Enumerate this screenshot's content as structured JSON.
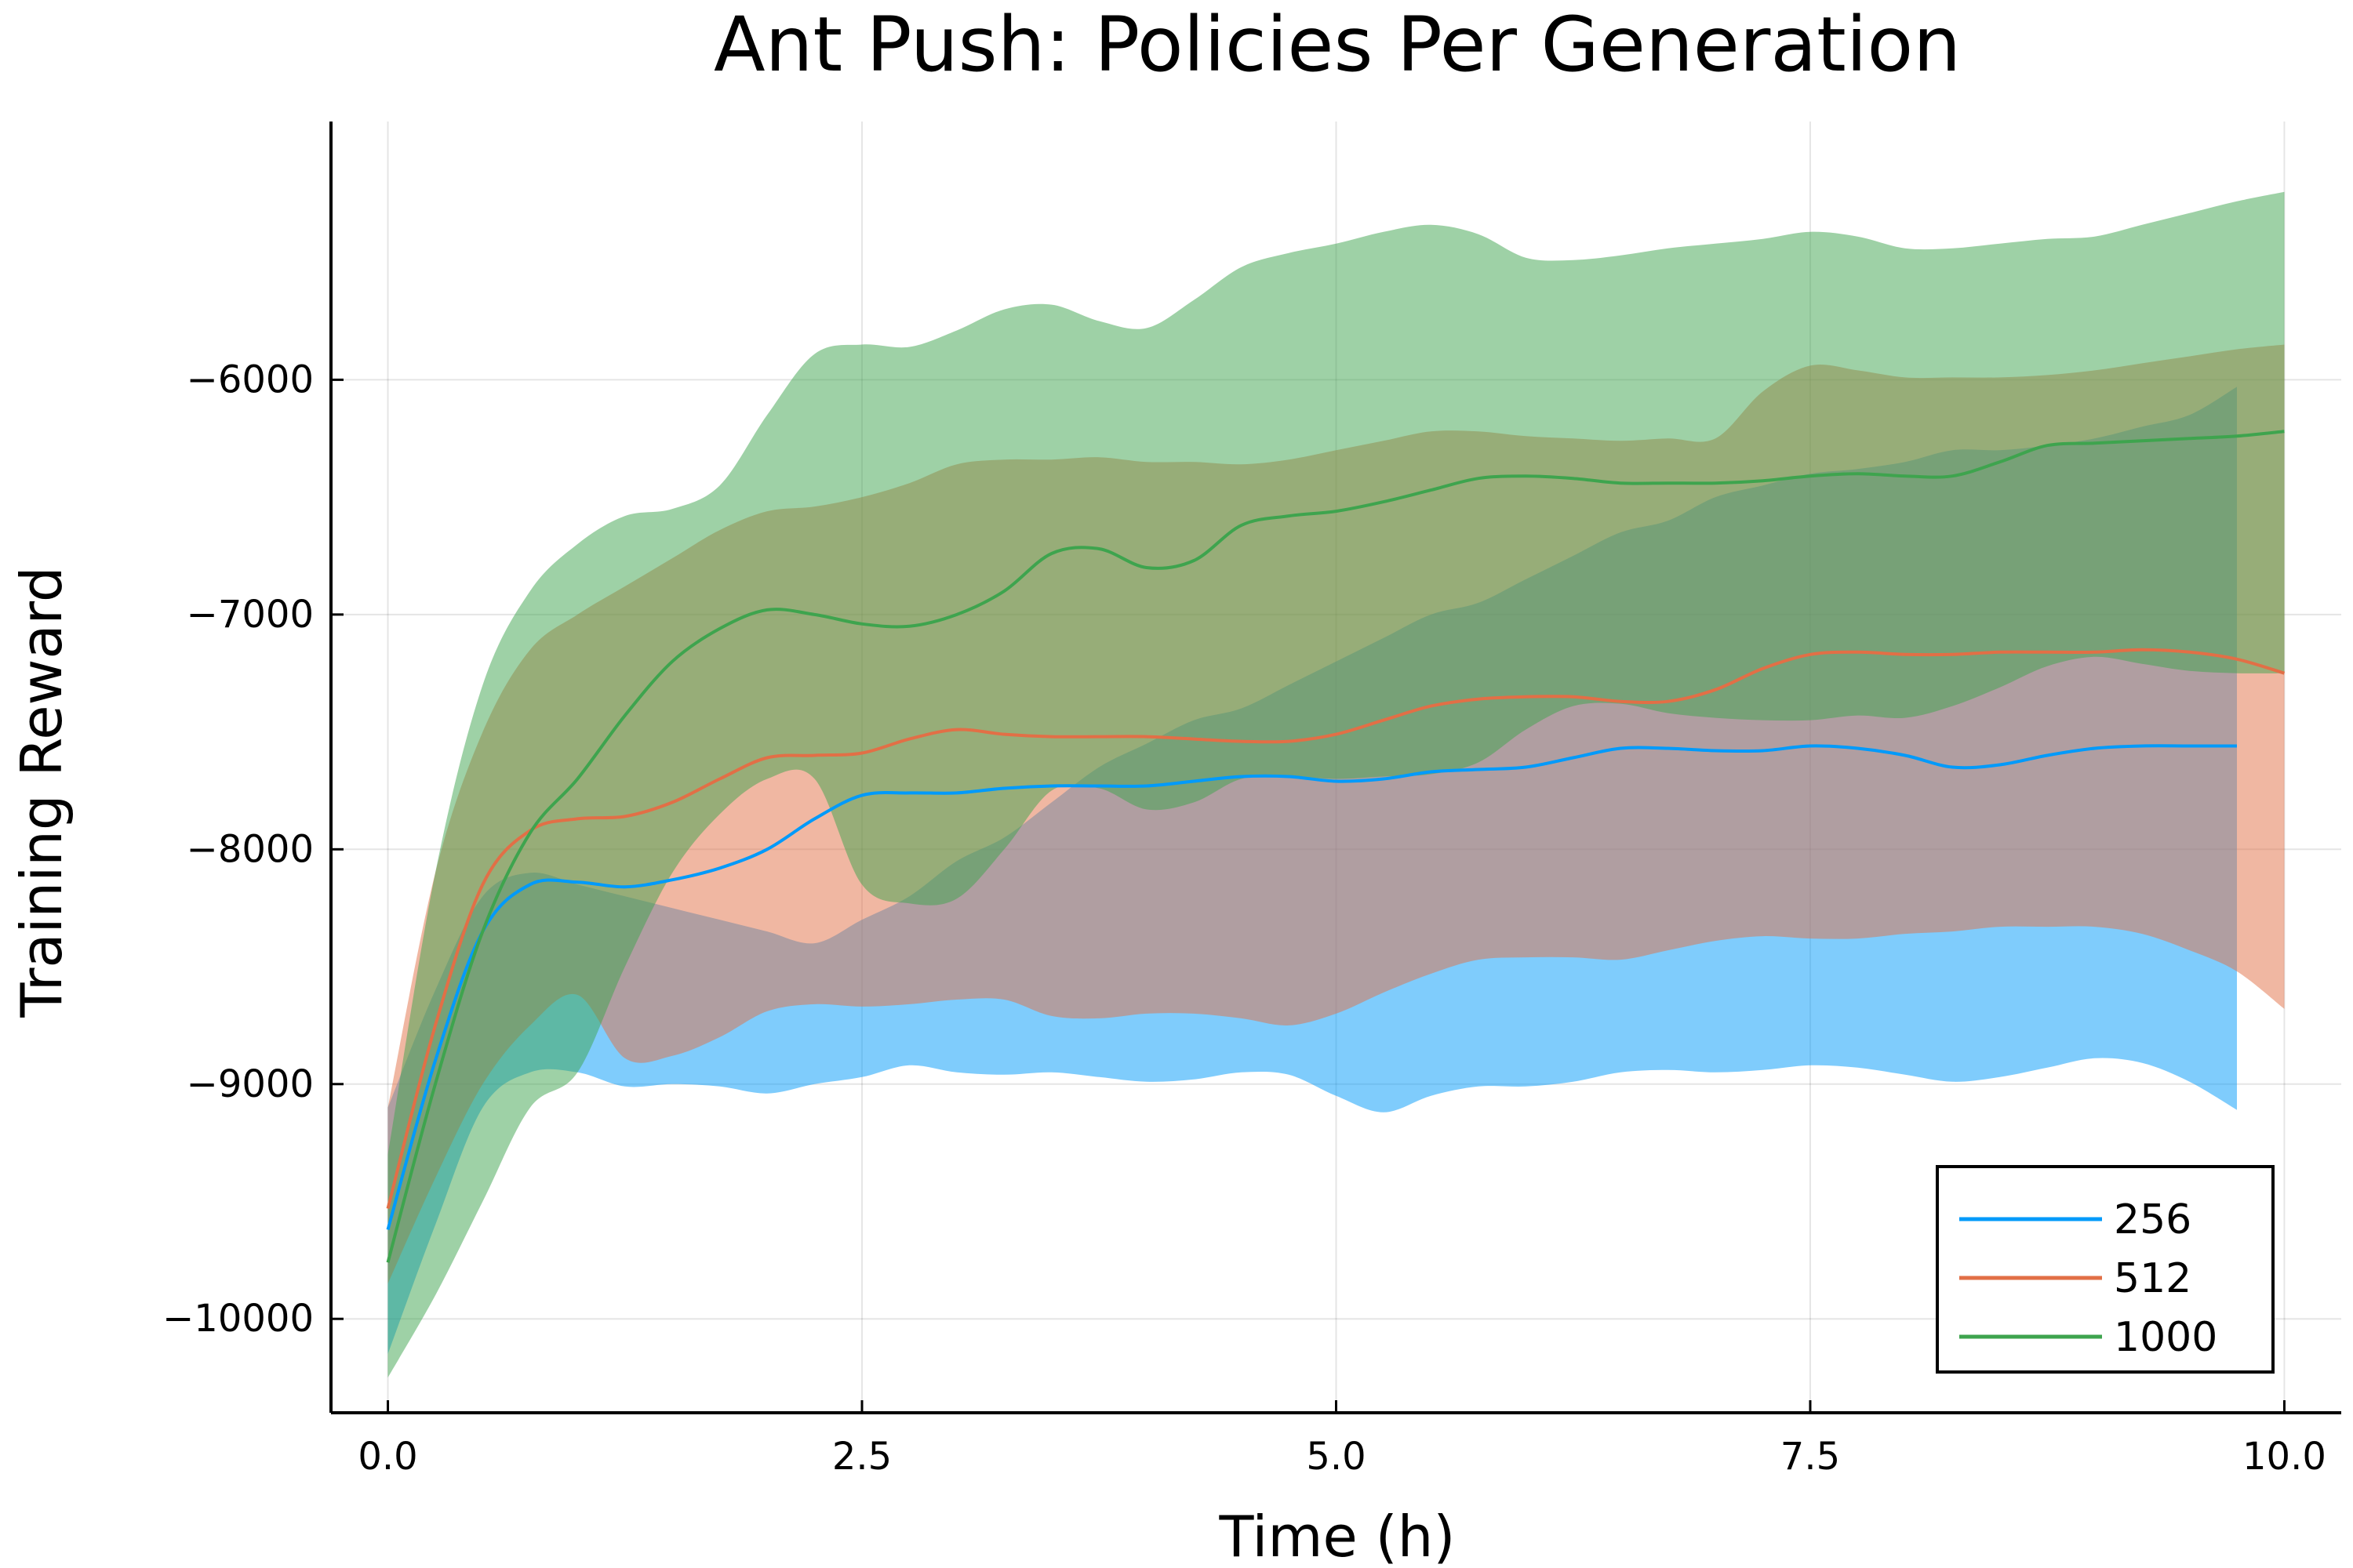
{
  "chart_data": {
    "type": "line",
    "title": "Ant Push: Policies Per Generation",
    "xlabel": "Time (h)",
    "ylabel": "Training Reward",
    "xlim": [
      -0.3,
      10.3
    ],
    "ylim": [
      -10400,
      -4900
    ],
    "xticks": [
      0,
      2.5,
      5,
      7.5,
      10
    ],
    "xtick_labels": [
      "0.0",
      "2.5",
      "5.0",
      "7.5",
      "10.0"
    ],
    "yticks": [
      -10000,
      -9000,
      -8000,
      -7000,
      -6000
    ],
    "ytick_labels": [
      "−10000",
      "−9000",
      "−8000",
      "−7000",
      "−6000"
    ],
    "grid": true,
    "legend_position": "bottom-right",
    "series": [
      {
        "name": "256",
        "color": "#009AFA",
        "x": [
          0,
          0.25,
          0.5,
          0.75,
          1,
          1.25,
          1.5,
          1.75,
          2,
          2.25,
          2.5,
          2.75,
          3,
          3.25,
          3.5,
          3.75,
          4,
          4.25,
          4.5,
          4.75,
          5,
          5.25,
          5.5,
          5.75,
          6,
          6.25,
          6.5,
          6.75,
          7,
          7.25,
          7.5,
          7.75,
          8,
          8.25,
          8.5,
          8.75,
          9,
          9.25,
          9.5,
          9.75
        ],
        "mean": [
          -9620,
          -8900,
          -8350,
          -8150,
          -8140,
          -8160,
          -8130,
          -8080,
          -8000,
          -7870,
          -7770,
          -7760,
          -7760,
          -7740,
          -7730,
          -7730,
          -7730,
          -7710,
          -7690,
          -7690,
          -7710,
          -7700,
          -7670,
          -7660,
          -7650,
          -7610,
          -7570,
          -7570,
          -7580,
          -7580,
          -7560,
          -7570,
          -7600,
          -7650,
          -7640,
          -7600,
          -7570,
          -7560,
          -7560,
          -7560
        ],
        "upper": [
          -9100,
          -8600,
          -8200,
          -8100,
          -8150,
          -8200,
          -8250,
          -8300,
          -8350,
          -8400,
          -8300,
          -8200,
          -8050,
          -7950,
          -7800,
          -7650,
          -7550,
          -7450,
          -7400,
          -7300,
          -7200,
          -7100,
          -7000,
          -6950,
          -6850,
          -6750,
          -6650,
          -6600,
          -6500,
          -6450,
          -6400,
          -6380,
          -6350,
          -6300,
          -6300,
          -6280,
          -6250,
          -6200,
          -6150,
          -6030
        ],
        "lower": [
          -10150,
          -9600,
          -9100,
          -8950,
          -8950,
          -9010,
          -9000,
          -9010,
          -9040,
          -9000,
          -8970,
          -8920,
          -8950,
          -8960,
          -8950,
          -8970,
          -8990,
          -8980,
          -8950,
          -8960,
          -9050,
          -9120,
          -9050,
          -9010,
          -9010,
          -8990,
          -8950,
          -8940,
          -8950,
          -8940,
          -8920,
          -8930,
          -8960,
          -8990,
          -8970,
          -8930,
          -8890,
          -8910,
          -8990,
          -9110
        ]
      },
      {
        "name": "512",
        "color": "#E26F46",
        "x": [
          0,
          0.25,
          0.5,
          0.75,
          1,
          1.25,
          1.5,
          1.75,
          2,
          2.25,
          2.5,
          2.75,
          3,
          3.25,
          3.5,
          3.75,
          4,
          4.25,
          4.5,
          4.75,
          5,
          5.25,
          5.5,
          5.75,
          6,
          6.25,
          6.5,
          6.75,
          7,
          7.25,
          7.5,
          7.75,
          8,
          8.25,
          8.5,
          8.75,
          9,
          9.25,
          9.5,
          9.75,
          10
        ],
        "mean": [
          -9530,
          -8750,
          -8150,
          -7920,
          -7870,
          -7860,
          -7800,
          -7700,
          -7610,
          -7600,
          -7590,
          -7530,
          -7490,
          -7510,
          -7520,
          -7520,
          -7520,
          -7530,
          -7540,
          -7540,
          -7510,
          -7450,
          -7390,
          -7360,
          -7350,
          -7350,
          -7370,
          -7370,
          -7320,
          -7230,
          -7170,
          -7160,
          -7170,
          -7170,
          -7160,
          -7160,
          -7160,
          -7150,
          -7160,
          -7190,
          -7250
        ],
        "upper": [
          -9100,
          -8100,
          -7500,
          -7150,
          -7000,
          -6880,
          -6760,
          -6640,
          -6560,
          -6540,
          -6500,
          -6440,
          -6360,
          -6340,
          -6340,
          -6330,
          -6350,
          -6350,
          -6360,
          -6340,
          -6300,
          -6260,
          -6220,
          -6220,
          -6240,
          -6250,
          -6260,
          -6250,
          -6250,
          -6050,
          -5940,
          -5960,
          -5990,
          -5990,
          -5990,
          -5980,
          -5960,
          -5930,
          -5900,
          -5870,
          -5850
        ],
        "lower": [
          -9850,
          -9400,
          -9000,
          -8750,
          -8620,
          -8890,
          -8880,
          -8800,
          -8690,
          -8660,
          -8670,
          -8660,
          -8640,
          -8640,
          -8710,
          -8720,
          -8700,
          -8700,
          -8720,
          -8750,
          -8700,
          -8610,
          -8530,
          -8470,
          -8460,
          -8460,
          -8470,
          -8430,
          -8390,
          -8370,
          -8380,
          -8380,
          -8360,
          -8350,
          -8330,
          -8330,
          -8330,
          -8360,
          -8430,
          -8520,
          -8680
        ]
      },
      {
        "name": "1000",
        "color": "#3EA44E",
        "x": [
          0,
          0.25,
          0.5,
          0.75,
          1,
          1.25,
          1.5,
          1.75,
          2,
          2.25,
          2.5,
          2.75,
          3,
          3.25,
          3.5,
          3.75,
          4,
          4.25,
          4.5,
          4.75,
          5,
          5.25,
          5.5,
          5.75,
          6,
          6.25,
          6.5,
          6.75,
          7,
          7.25,
          7.5,
          7.75,
          8,
          8.25,
          8.5,
          8.75,
          9,
          9.25,
          9.5,
          9.75,
          10
        ],
        "mean": [
          -9760,
          -9000,
          -8350,
          -7930,
          -7700,
          -7430,
          -7200,
          -7060,
          -6980,
          -7000,
          -7040,
          -7050,
          -7000,
          -6900,
          -6740,
          -6720,
          -6800,
          -6770,
          -6620,
          -6580,
          -6560,
          -6520,
          -6470,
          -6420,
          -6410,
          -6420,
          -6440,
          -6440,
          -6440,
          -6430,
          -6410,
          -6400,
          -6410,
          -6410,
          -6350,
          -6280,
          -6270,
          -6260,
          -6250,
          -6240,
          -6220
        ],
        "upper": [
          -9300,
          -8100,
          -7300,
          -6900,
          -6700,
          -6580,
          -6550,
          -6450,
          -6150,
          -5890,
          -5850,
          -5860,
          -5790,
          -5700,
          -5680,
          -5750,
          -5780,
          -5660,
          -5520,
          -5460,
          -5420,
          -5370,
          -5340,
          -5380,
          -5480,
          -5490,
          -5470,
          -5440,
          -5420,
          -5400,
          -5370,
          -5390,
          -5440,
          -5440,
          -5420,
          -5400,
          -5390,
          -5340,
          -5290,
          -5240,
          -5200
        ],
        "lower": [
          -10250,
          -9900,
          -9500,
          -9100,
          -8950,
          -8500,
          -8100,
          -7850,
          -7700,
          -7700,
          -8150,
          -8230,
          -8210,
          -8000,
          -7750,
          -7740,
          -7830,
          -7800,
          -7700,
          -7690,
          -7700,
          -7690,
          -7680,
          -7630,
          -7490,
          -7390,
          -7380,
          -7420,
          -7440,
          -7450,
          -7450,
          -7430,
          -7440,
          -7390,
          -7310,
          -7220,
          -7180,
          -7210,
          -7240,
          -7250,
          -7250
        ]
      }
    ]
  }
}
